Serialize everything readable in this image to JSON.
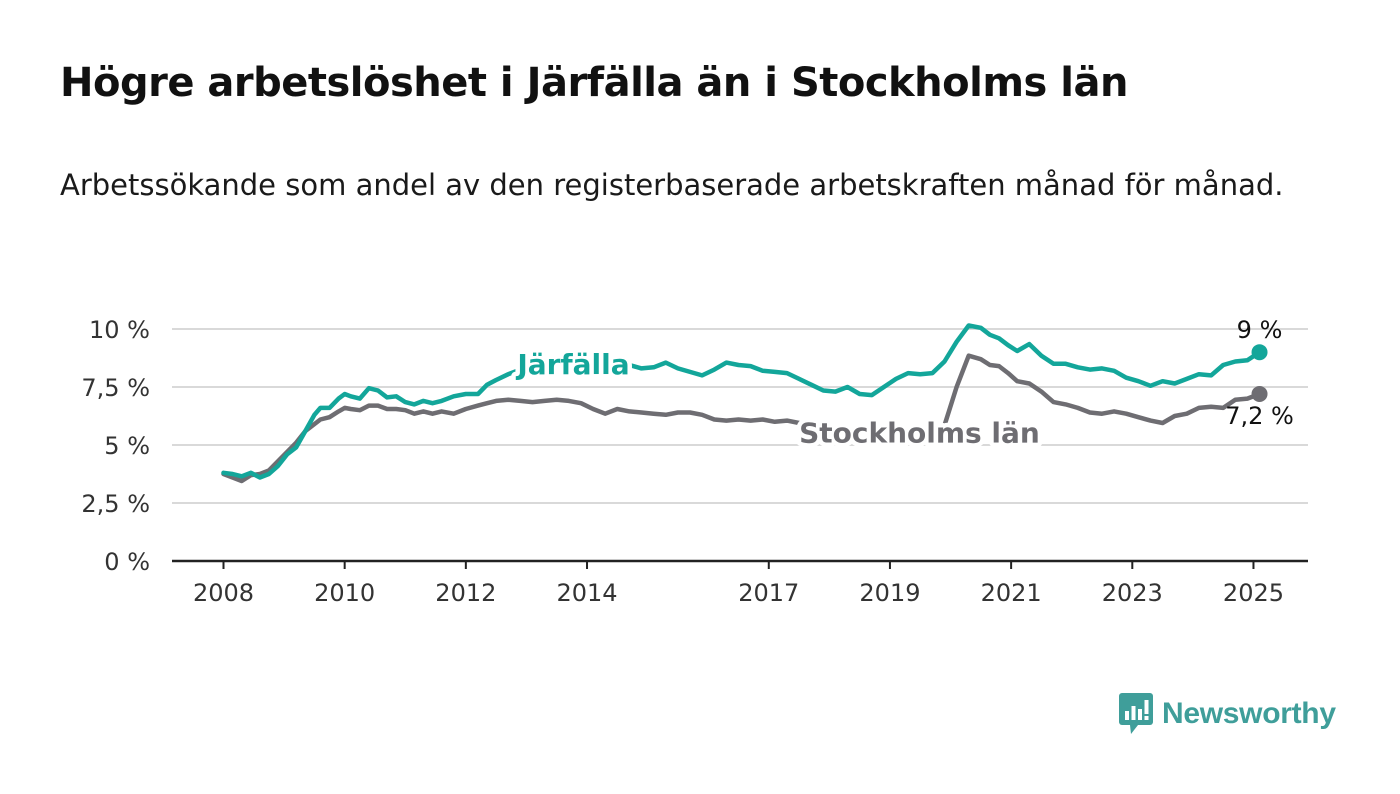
{
  "title": "Högre arbetslöshet i Järfälla än i Stockholms län",
  "subtitle": "Arbetssökande som andel av den registerbaserade arbetskraften månad för månad.",
  "logo": {
    "text": "Newsworthy",
    "icon": "newsworthy-bar-chart-icon",
    "color": "#3f9e9a"
  },
  "colors": {
    "accent": "#13a69a",
    "secondary": "#6e6d72",
    "grid": "#d9d9d9",
    "axis": "#222222"
  },
  "chart_data": {
    "type": "line",
    "title": "",
    "xlabel": "",
    "ylabel": "",
    "x_ticks": [
      "2008",
      "2010",
      "2012",
      "2014",
      "2017",
      "2019",
      "2021",
      "2023",
      "2025"
    ],
    "y_ticks": [
      "0 %",
      "2,5 %",
      "5 %",
      "7,5 %",
      "10 %"
    ],
    "y_tick_values": [
      0,
      2.5,
      5,
      7.5,
      10
    ],
    "ylim": [
      0,
      10
    ],
    "xlim": [
      2007.15,
      2025.9
    ],
    "grid": true,
    "legend": "direct-labels",
    "series": [
      {
        "name": "Järfälla",
        "color": "#13a69a",
        "end_label": "9 %",
        "x": [
          2008.0,
          2008.15,
          2008.3,
          2008.45,
          2008.6,
          2008.75,
          2008.9,
          2009.05,
          2009.2,
          2009.35,
          2009.5,
          2009.6,
          2009.75,
          2009.9,
          2010.0,
          2010.1,
          2010.25,
          2010.4,
          2010.55,
          2010.7,
          2010.85,
          2011.0,
          2011.15,
          2011.3,
          2011.45,
          2011.6,
          2011.8,
          2012.0,
          2012.2,
          2012.35,
          2012.5,
          2012.7,
          2012.9,
          2013.1,
          2013.3,
          2013.5,
          2013.7,
          2013.9,
          2014.1,
          2014.3,
          2014.5,
          2014.7,
          2014.9,
          2015.1,
          2015.3,
          2015.5,
          2015.7,
          2015.9,
          2016.1,
          2016.3,
          2016.5,
          2016.7,
          2016.9,
          2017.1,
          2017.3,
          2017.5,
          2017.7,
          2017.9,
          2018.1,
          2018.3,
          2018.5,
          2018.7,
          2018.9,
          2019.1,
          2019.3,
          2019.5,
          2019.7,
          2019.9,
          2020.1,
          2020.3,
          2020.5,
          2020.65,
          2020.8,
          2020.95,
          2021.1,
          2021.3,
          2021.5,
          2021.7,
          2021.9,
          2022.1,
          2022.3,
          2022.5,
          2022.7,
          2022.9,
          2023.1,
          2023.3,
          2023.5,
          2023.7,
          2023.9,
          2024.1,
          2024.3,
          2024.5,
          2024.7,
          2024.9,
          2025.1
        ],
        "values": [
          3.8,
          3.75,
          3.65,
          3.8,
          3.6,
          3.75,
          4.1,
          4.6,
          4.9,
          5.6,
          6.3,
          6.6,
          6.6,
          7.0,
          7.2,
          7.1,
          7.0,
          7.45,
          7.35,
          7.05,
          7.1,
          6.85,
          6.75,
          6.9,
          6.8,
          6.9,
          7.1,
          7.2,
          7.2,
          7.6,
          7.8,
          8.05,
          8.25,
          8.35,
          8.45,
          8.5,
          8.55,
          8.5,
          8.45,
          8.4,
          8.35,
          8.45,
          8.3,
          8.35,
          8.55,
          8.3,
          8.15,
          8.0,
          8.25,
          8.55,
          8.45,
          8.4,
          8.2,
          8.15,
          8.1,
          7.85,
          7.6,
          7.35,
          7.3,
          7.5,
          7.2,
          7.15,
          7.5,
          7.85,
          8.1,
          8.05,
          8.1,
          8.6,
          9.45,
          10.15,
          10.05,
          9.75,
          9.6,
          9.3,
          9.05,
          9.35,
          8.85,
          8.5,
          8.5,
          8.35,
          8.25,
          8.3,
          8.2,
          7.9,
          7.75,
          7.55,
          7.75,
          7.65,
          7.85,
          8.05,
          8.0,
          8.45,
          8.6,
          8.65,
          9.0
        ]
      },
      {
        "name": "Stockholms län",
        "color": "#6e6d72",
        "end_label": "7,2 %",
        "x": [
          2008.0,
          2008.15,
          2008.3,
          2008.45,
          2008.6,
          2008.75,
          2008.9,
          2009.05,
          2009.2,
          2009.35,
          2009.5,
          2009.6,
          2009.75,
          2009.9,
          2010.0,
          2010.1,
          2010.25,
          2010.4,
          2010.55,
          2010.7,
          2010.85,
          2011.0,
          2011.15,
          2011.3,
          2011.45,
          2011.6,
          2011.8,
          2012.0,
          2012.2,
          2012.35,
          2012.5,
          2012.7,
          2012.9,
          2013.1,
          2013.3,
          2013.5,
          2013.7,
          2013.9,
          2014.1,
          2014.3,
          2014.5,
          2014.7,
          2014.9,
          2015.1,
          2015.3,
          2015.5,
          2015.7,
          2015.9,
          2016.1,
          2016.3,
          2016.5,
          2016.7,
          2016.9,
          2017.1,
          2017.3,
          2017.5,
          2017.7,
          2017.9,
          2018.1,
          2018.3,
          2018.5,
          2018.7,
          2018.9,
          2019.1,
          2019.3,
          2019.5,
          2019.7,
          2019.9,
          2020.1,
          2020.3,
          2020.5,
          2020.65,
          2020.8,
          2020.95,
          2021.1,
          2021.3,
          2021.5,
          2021.7,
          2021.9,
          2022.1,
          2022.3,
          2022.5,
          2022.7,
          2022.9,
          2023.1,
          2023.3,
          2023.5,
          2023.7,
          2023.9,
          2024.1,
          2024.3,
          2024.5,
          2024.7,
          2024.9,
          2025.1
        ],
        "values": [
          3.75,
          3.6,
          3.45,
          3.7,
          3.75,
          3.9,
          4.3,
          4.7,
          5.1,
          5.6,
          5.9,
          6.1,
          6.2,
          6.45,
          6.6,
          6.55,
          6.5,
          6.7,
          6.7,
          6.55,
          6.55,
          6.5,
          6.35,
          6.45,
          6.35,
          6.45,
          6.35,
          6.55,
          6.7,
          6.8,
          6.9,
          6.95,
          6.9,
          6.85,
          6.9,
          6.95,
          6.9,
          6.8,
          6.55,
          6.35,
          6.55,
          6.45,
          6.4,
          6.35,
          6.3,
          6.4,
          6.4,
          6.3,
          6.1,
          6.05,
          6.1,
          6.05,
          6.1,
          6.0,
          6.05,
          5.95,
          5.9,
          5.8,
          5.65,
          5.6,
          5.5,
          5.45,
          5.5,
          5.55,
          5.6,
          5.65,
          5.7,
          5.85,
          7.5,
          8.85,
          8.7,
          8.45,
          8.4,
          8.1,
          7.75,
          7.65,
          7.3,
          6.85,
          6.75,
          6.6,
          6.4,
          6.35,
          6.45,
          6.35,
          6.2,
          6.05,
          5.95,
          6.25,
          6.35,
          6.6,
          6.65,
          6.6,
          6.95,
          7.0,
          7.2
        ]
      }
    ]
  }
}
